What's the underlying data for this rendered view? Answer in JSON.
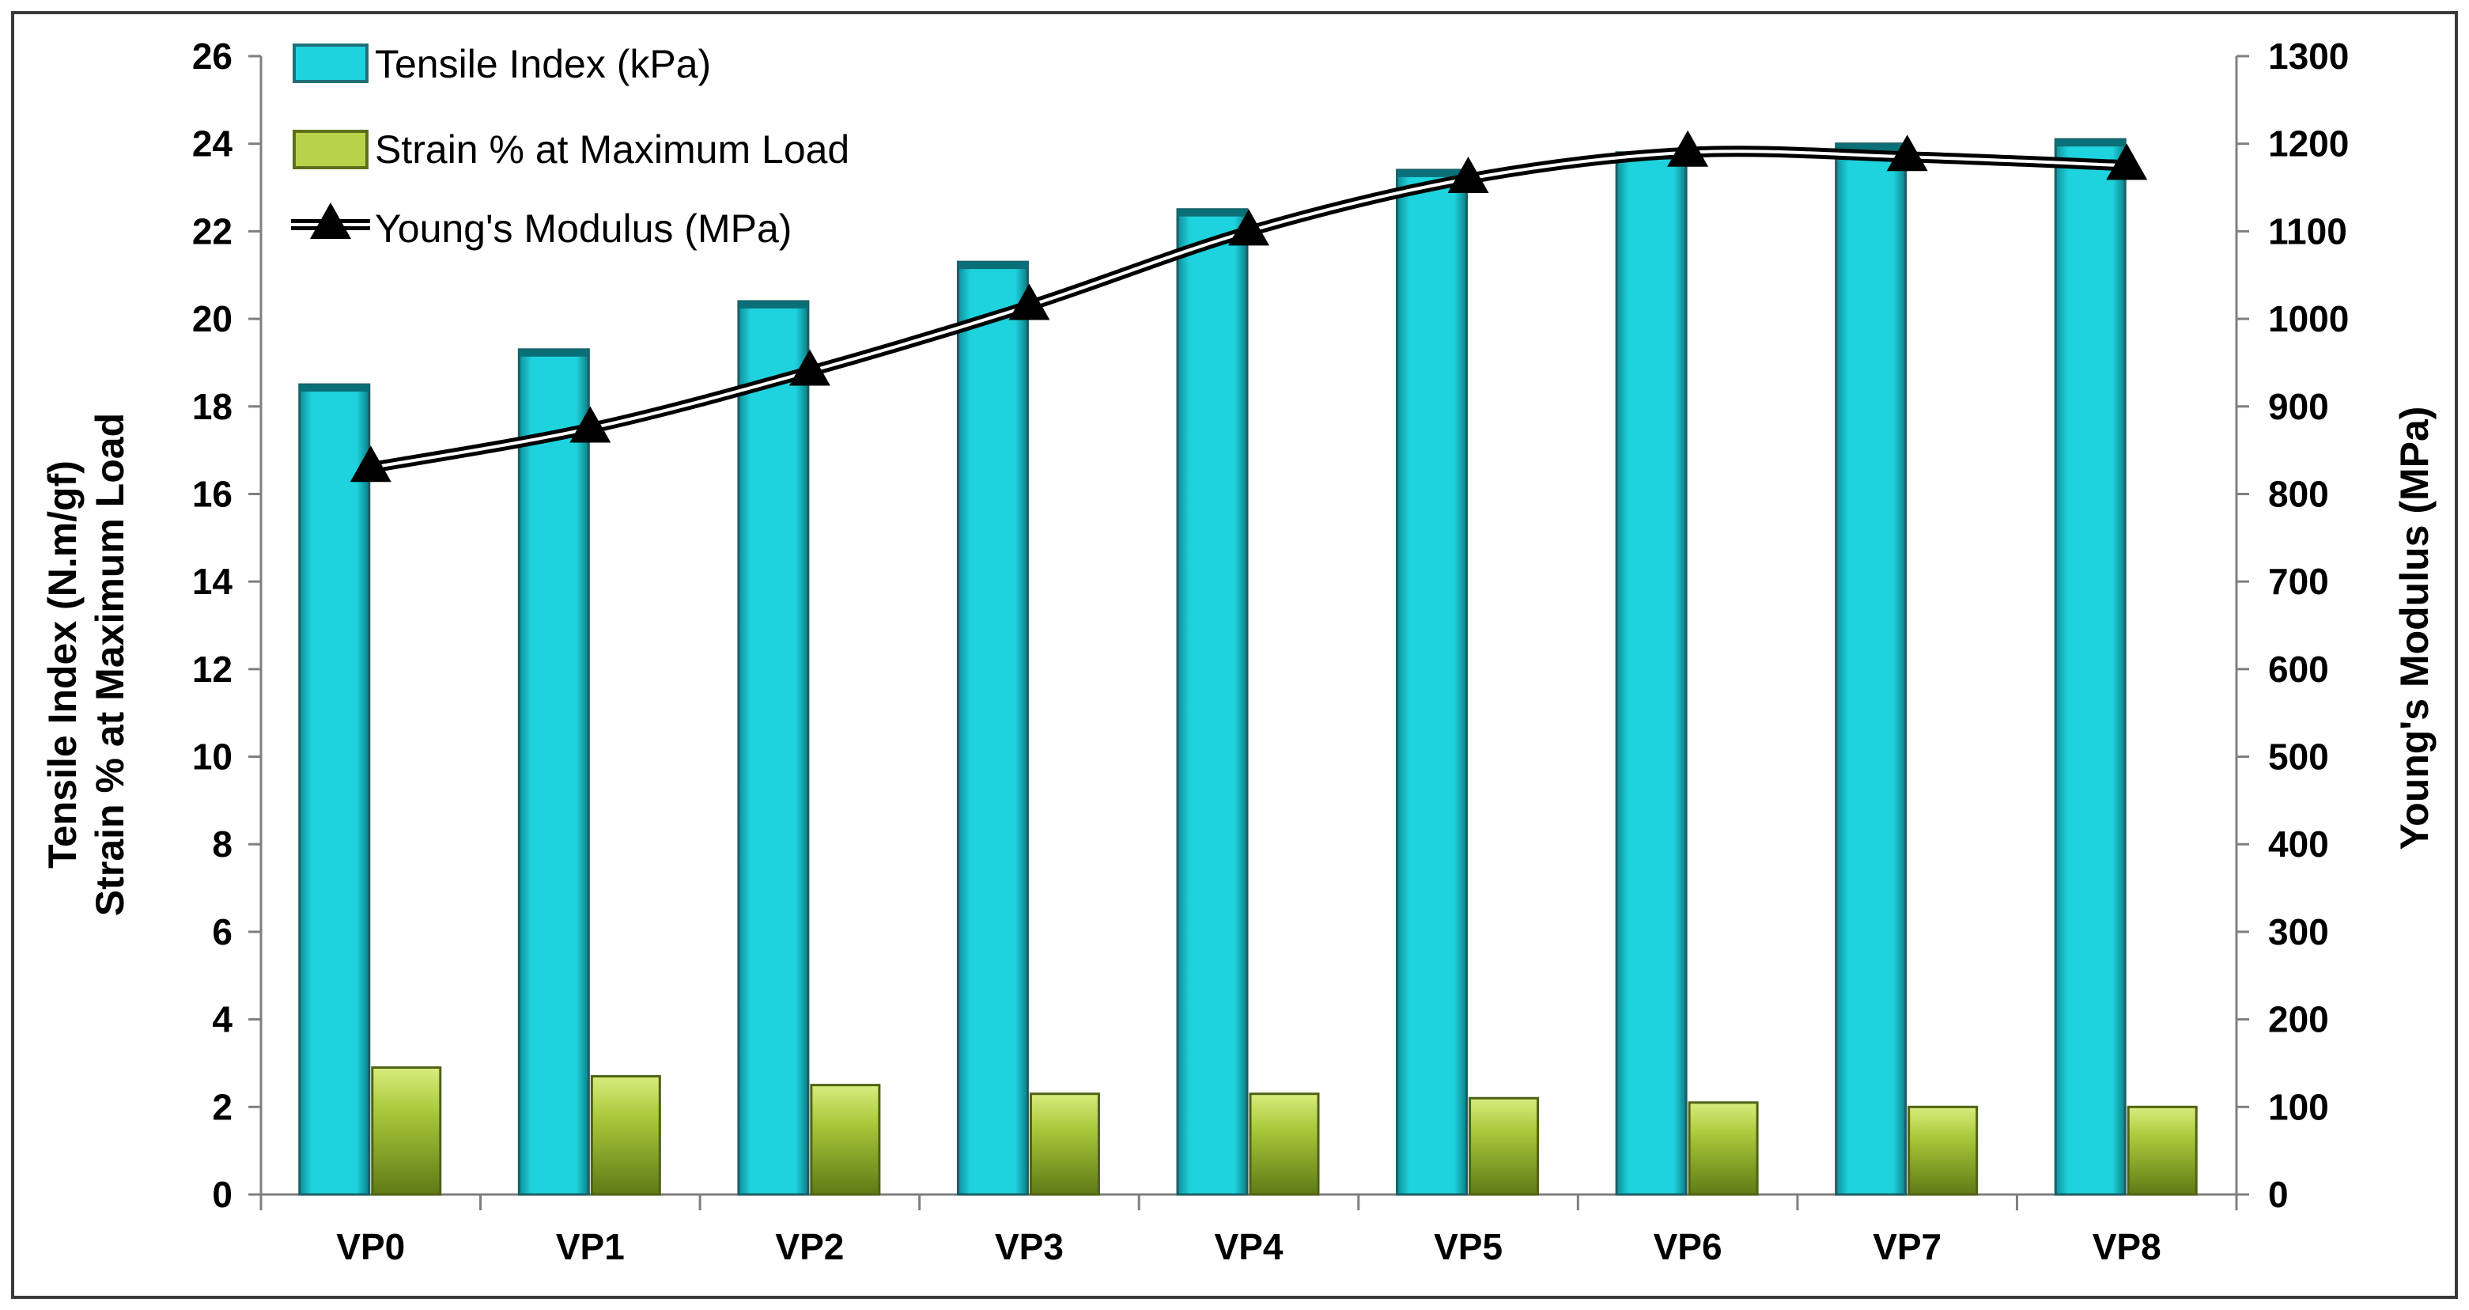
{
  "chart_data": {
    "type": "bar",
    "title": "",
    "categories": [
      "VP0",
      "VP1",
      "VP2",
      "VP3",
      "VP4",
      "VP5",
      "VP6",
      "VP7",
      "VP8"
    ],
    "series": [
      {
        "name": "Tensile Index (kPa)",
        "type": "bar",
        "axis": "left",
        "color": "#1fd3de",
        "values": [
          18.5,
          19.3,
          20.4,
          21.3,
          22.5,
          23.4,
          23.8,
          24.0,
          24.1
        ]
      },
      {
        "name": "Strain % at Maximum Load",
        "type": "bar",
        "axis": "left",
        "color": "#a8c83a",
        "values": [
          2.9,
          2.7,
          2.5,
          2.3,
          2.3,
          2.2,
          2.1,
          2.0,
          2.0
        ]
      },
      {
        "name": "Young's Modulus (MPa)",
        "type": "line",
        "axis": "right",
        "color": "#000000",
        "marker": "triangle",
        "values": [
          830,
          875,
          940,
          1015,
          1100,
          1160,
          1190,
          1185,
          1175
        ]
      }
    ],
    "xlabel": "",
    "ylabel": [
      "Tensile Index (N.m/gf)",
      "Strain % at Maximum Load"
    ],
    "y2label": "Young's Modulus (MPa)",
    "ylim": [
      0,
      26
    ],
    "yticks": [
      "0",
      "2",
      "4",
      "6",
      "8",
      "10",
      "12",
      "14",
      "16",
      "18",
      "20",
      "22",
      "24",
      "26"
    ],
    "y2lim": [
      0,
      1300
    ],
    "y2ticks": [
      "0",
      "100",
      "200",
      "300",
      "400",
      "500",
      "600",
      "700",
      "800",
      "900",
      "1000",
      "1100",
      "1200",
      "1300"
    ],
    "grid": false,
    "legend_position": "top-left"
  }
}
